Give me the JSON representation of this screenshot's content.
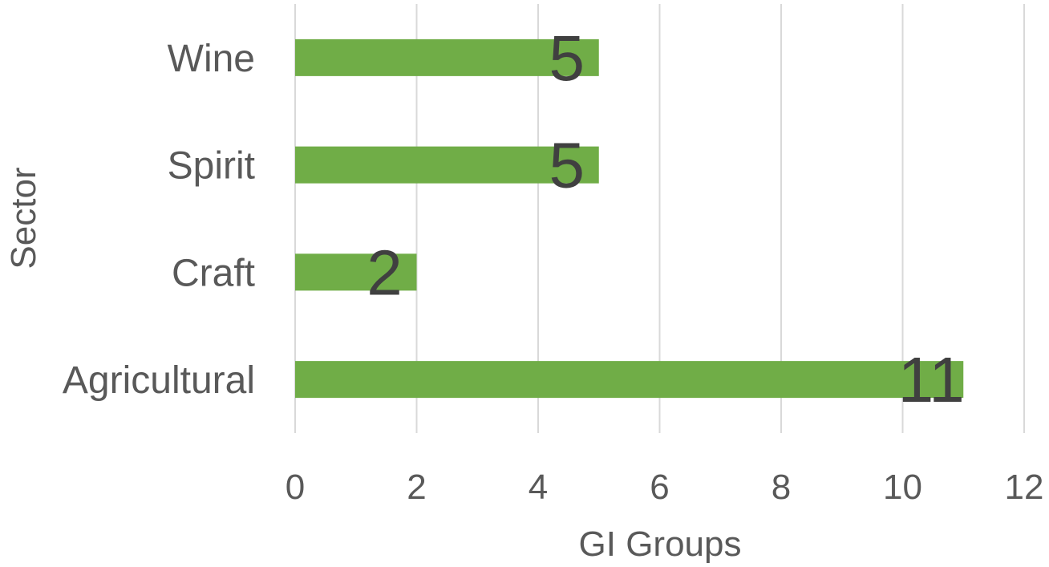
{
  "chart_data": {
    "type": "bar",
    "orientation": "horizontal",
    "categories": [
      "Wine",
      "Spirit",
      "Craft",
      "Agricultural"
    ],
    "values": [
      5,
      5,
      2,
      11
    ],
    "data_labels": [
      "5",
      "5",
      "2",
      "11"
    ],
    "xlabel": "GI Groups",
    "ylabel": "Sector",
    "xlim": [
      0,
      12
    ],
    "xticks": [
      "0",
      "2",
      "4",
      "6",
      "8",
      "10",
      "12"
    ],
    "grid": true,
    "legend": "none",
    "colors": {
      "bar": "#70ad47",
      "grid": "#d9d9d9",
      "text": "#595959",
      "data_label": "#404040"
    }
  }
}
